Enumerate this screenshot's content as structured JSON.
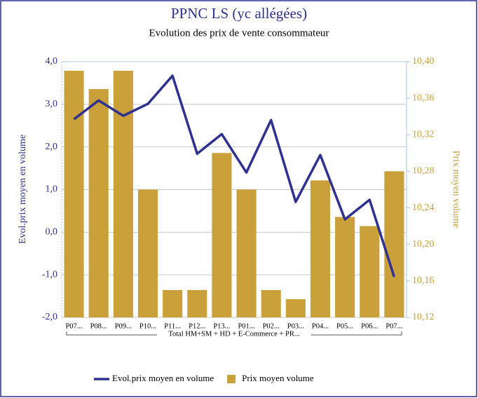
{
  "chart_data": {
    "type": "combo",
    "title": "PPNC LS (yc allégées)",
    "subtitle": "Evolution des prix de vente consommateur",
    "categories": [
      "P07...",
      "P08...",
      "P09...",
      "P10...",
      "P11...",
      "P12...",
      "P13...",
      "P01...",
      "P02...",
      "P03...",
      "P04...",
      "P05...",
      "P06...",
      "P07..."
    ],
    "group_label": "Total HM+SM + HD + E-Commerce + PR...",
    "y_label": "Evol.prix moyen en volume",
    "y2_label": "Prix moyen volume",
    "series": [
      {
        "name": "Evol.prix moyen en volume",
        "type": "line",
        "axis": "y",
        "color": "#2e3192",
        "values": [
          2.65,
          3.09,
          2.73,
          3.01,
          3.67,
          1.84,
          2.3,
          1.4,
          2.63,
          0.71,
          1.81,
          0.3,
          0.76,
          -1.05
        ]
      },
      {
        "name": "Prix moyen volume",
        "type": "bar",
        "axis": "y2",
        "color": "#c9a03a",
        "values": [
          10.39,
          10.37,
          10.39,
          10.26,
          10.15,
          10.15,
          10.3,
          10.26,
          10.15,
          10.14,
          10.27,
          10.23,
          10.22,
          10.28
        ]
      }
    ],
    "ylim": [
      -2,
      4
    ],
    "yticks": [
      {
        "value": -2,
        "label": "-2,0"
      },
      {
        "value": -1,
        "label": "-1,0"
      },
      {
        "value": 0,
        "label": "0,0"
      },
      {
        "value": 1,
        "label": "1,0"
      },
      {
        "value": 2,
        "label": "2,0"
      },
      {
        "value": 3,
        "label": "3,0"
      },
      {
        "value": 4,
        "label": "4,0"
      }
    ],
    "y2lim": [
      10.12,
      10.4
    ],
    "y2ticks": [
      {
        "value": 10.12,
        "label": "10,12"
      },
      {
        "value": 10.16,
        "label": "10,16"
      },
      {
        "value": 10.2,
        "label": "10,20"
      },
      {
        "value": 10.24,
        "label": "10,24"
      },
      {
        "value": 10.28,
        "label": "10,28"
      },
      {
        "value": 10.32,
        "label": "10,32"
      },
      {
        "value": 10.36,
        "label": "10,36"
      },
      {
        "value": 10.4,
        "label": "10,40"
      }
    ],
    "grid": true,
    "legend": "bottom"
  }
}
